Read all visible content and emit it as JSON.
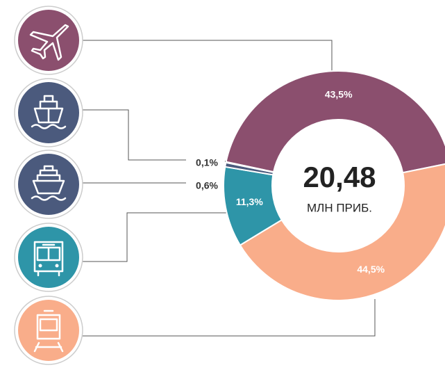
{
  "chart_data": {
    "type": "pie",
    "donut": true,
    "values": [
      43.5,
      44.5,
      11.3,
      0.6,
      0.1
    ],
    "value_labels": [
      "43,5%",
      "44,5%",
      "11,3%",
      "0,6%",
      "0,1%"
    ],
    "colors": [
      "#8b4f6e",
      "#f9ad8a",
      "#2e95a8",
      "#4b5a7d",
      "#4b5a7d"
    ],
    "total_label": "20,48",
    "unit": "МЛН ПРИБ."
  }
}
